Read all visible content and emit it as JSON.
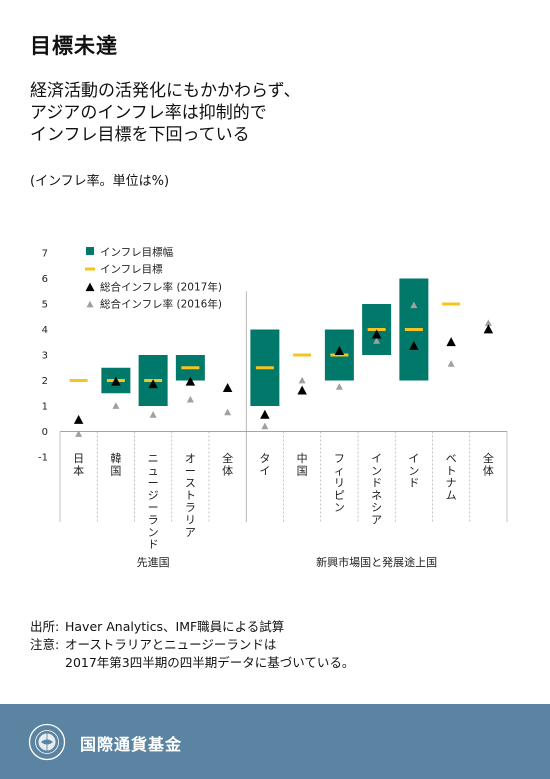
{
  "header": {
    "title": "目標未達",
    "subtitle_lines": [
      "経済活動の活発化にもかかわらず、",
      "アジアのインフレ率は抑制的で",
      "インフレ目標を下回っている"
    ],
    "unit": "(インフレ率。単位は%)"
  },
  "colors": {
    "band": "#00796b",
    "target": "#f7c41f",
    "cpi2017": "#000000",
    "cpi2016": "#a0a0a0"
  },
  "chart_data": {
    "type": "range-and-marker",
    "ylim": [
      -1,
      7
    ],
    "yticks": [
      "-1",
      "0",
      "1",
      "2",
      "3",
      "4",
      "5",
      "6",
      "7"
    ],
    "legend": [
      "インフレ目標幅",
      "インフレ目標",
      "総合インフレ率 (2017年)",
      "総合インフレ率 (2016年)"
    ],
    "legend_position": "top-left",
    "categories": [
      "日本",
      "韓国",
      "ニュージーランド",
      "オーストラリア",
      "全体",
      "タイ",
      "中国",
      "フィリピン",
      "インドネシア",
      "インド",
      "ベトナム",
      "全体"
    ],
    "groups": [
      {
        "label": "先進国",
        "start": 0,
        "end": 4
      },
      {
        "label": "新興市場国と発展途上国",
        "start": 5,
        "end": 11
      }
    ],
    "target_range": [
      null,
      [
        1.5,
        2.5
      ],
      [
        1,
        3
      ],
      [
        2,
        3
      ],
      null,
      [
        1,
        4
      ],
      null,
      [
        2,
        4
      ],
      [
        3,
        5
      ],
      [
        2,
        6
      ],
      null,
      null
    ],
    "target": [
      2,
      2,
      2,
      2.5,
      null,
      2.5,
      3,
      3,
      4,
      4,
      5,
      null
    ],
    "cpi_2017": [
      0.45,
      1.95,
      1.85,
      1.95,
      1.7,
      0.65,
      1.6,
      3.15,
      3.8,
      3.35,
      3.5,
      4.0
    ],
    "cpi_2016": [
      -0.1,
      1.0,
      0.65,
      1.25,
      0.75,
      0.2,
      2.0,
      1.75,
      3.55,
      4.95,
      2.65,
      4.25
    ]
  },
  "notes": {
    "source_label": "出所:",
    "source_text": "Haver Analytics、IMF職員による試算",
    "note_label": "注意:",
    "note_line1": "オーストラリアとニュージーランドは",
    "note_line2": "2017年第3四半期の四半期データに基づいている。"
  },
  "footer": {
    "org": "国際通貨基金",
    "logo_icon": "imf-seal-icon"
  }
}
